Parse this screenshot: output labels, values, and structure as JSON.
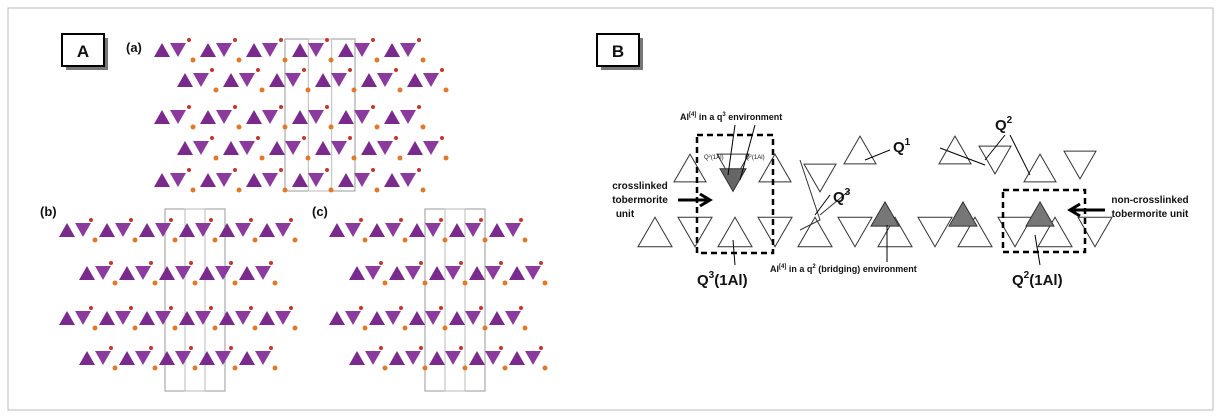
{
  "panel_a": {
    "label": "A",
    "sublabels": {
      "a": "(a)",
      "b": "(b)",
      "c": "(c)"
    }
  },
  "panel_b": {
    "label": "B",
    "annotations": {
      "al_q3": [
        "Al",
        "[4]",
        " in a q",
        "3",
        " environment"
      ],
      "al_q2": [
        "Al",
        "[4]",
        " in a q",
        "2",
        " (bridging) environment"
      ],
      "q1": [
        "Q",
        "1"
      ],
      "q2": [
        "Q",
        "2"
      ],
      "q3": [
        "Q",
        "3"
      ],
      "q3_1al": [
        "Q",
        "3",
        "(1Al)"
      ],
      "q2_1al": [
        "Q",
        "2",
        "(1Al)"
      ],
      "small_left": [
        "Q",
        "2",
        "(1Al)"
      ],
      "small_right": [
        "Q",
        "2",
        "(1Al)"
      ],
      "crosslinked": [
        "crosslinked",
        "tobermorite",
        "unit"
      ],
      "non_crosslinked": [
        "non-crosslinked",
        "tobermorite unit"
      ]
    }
  }
}
